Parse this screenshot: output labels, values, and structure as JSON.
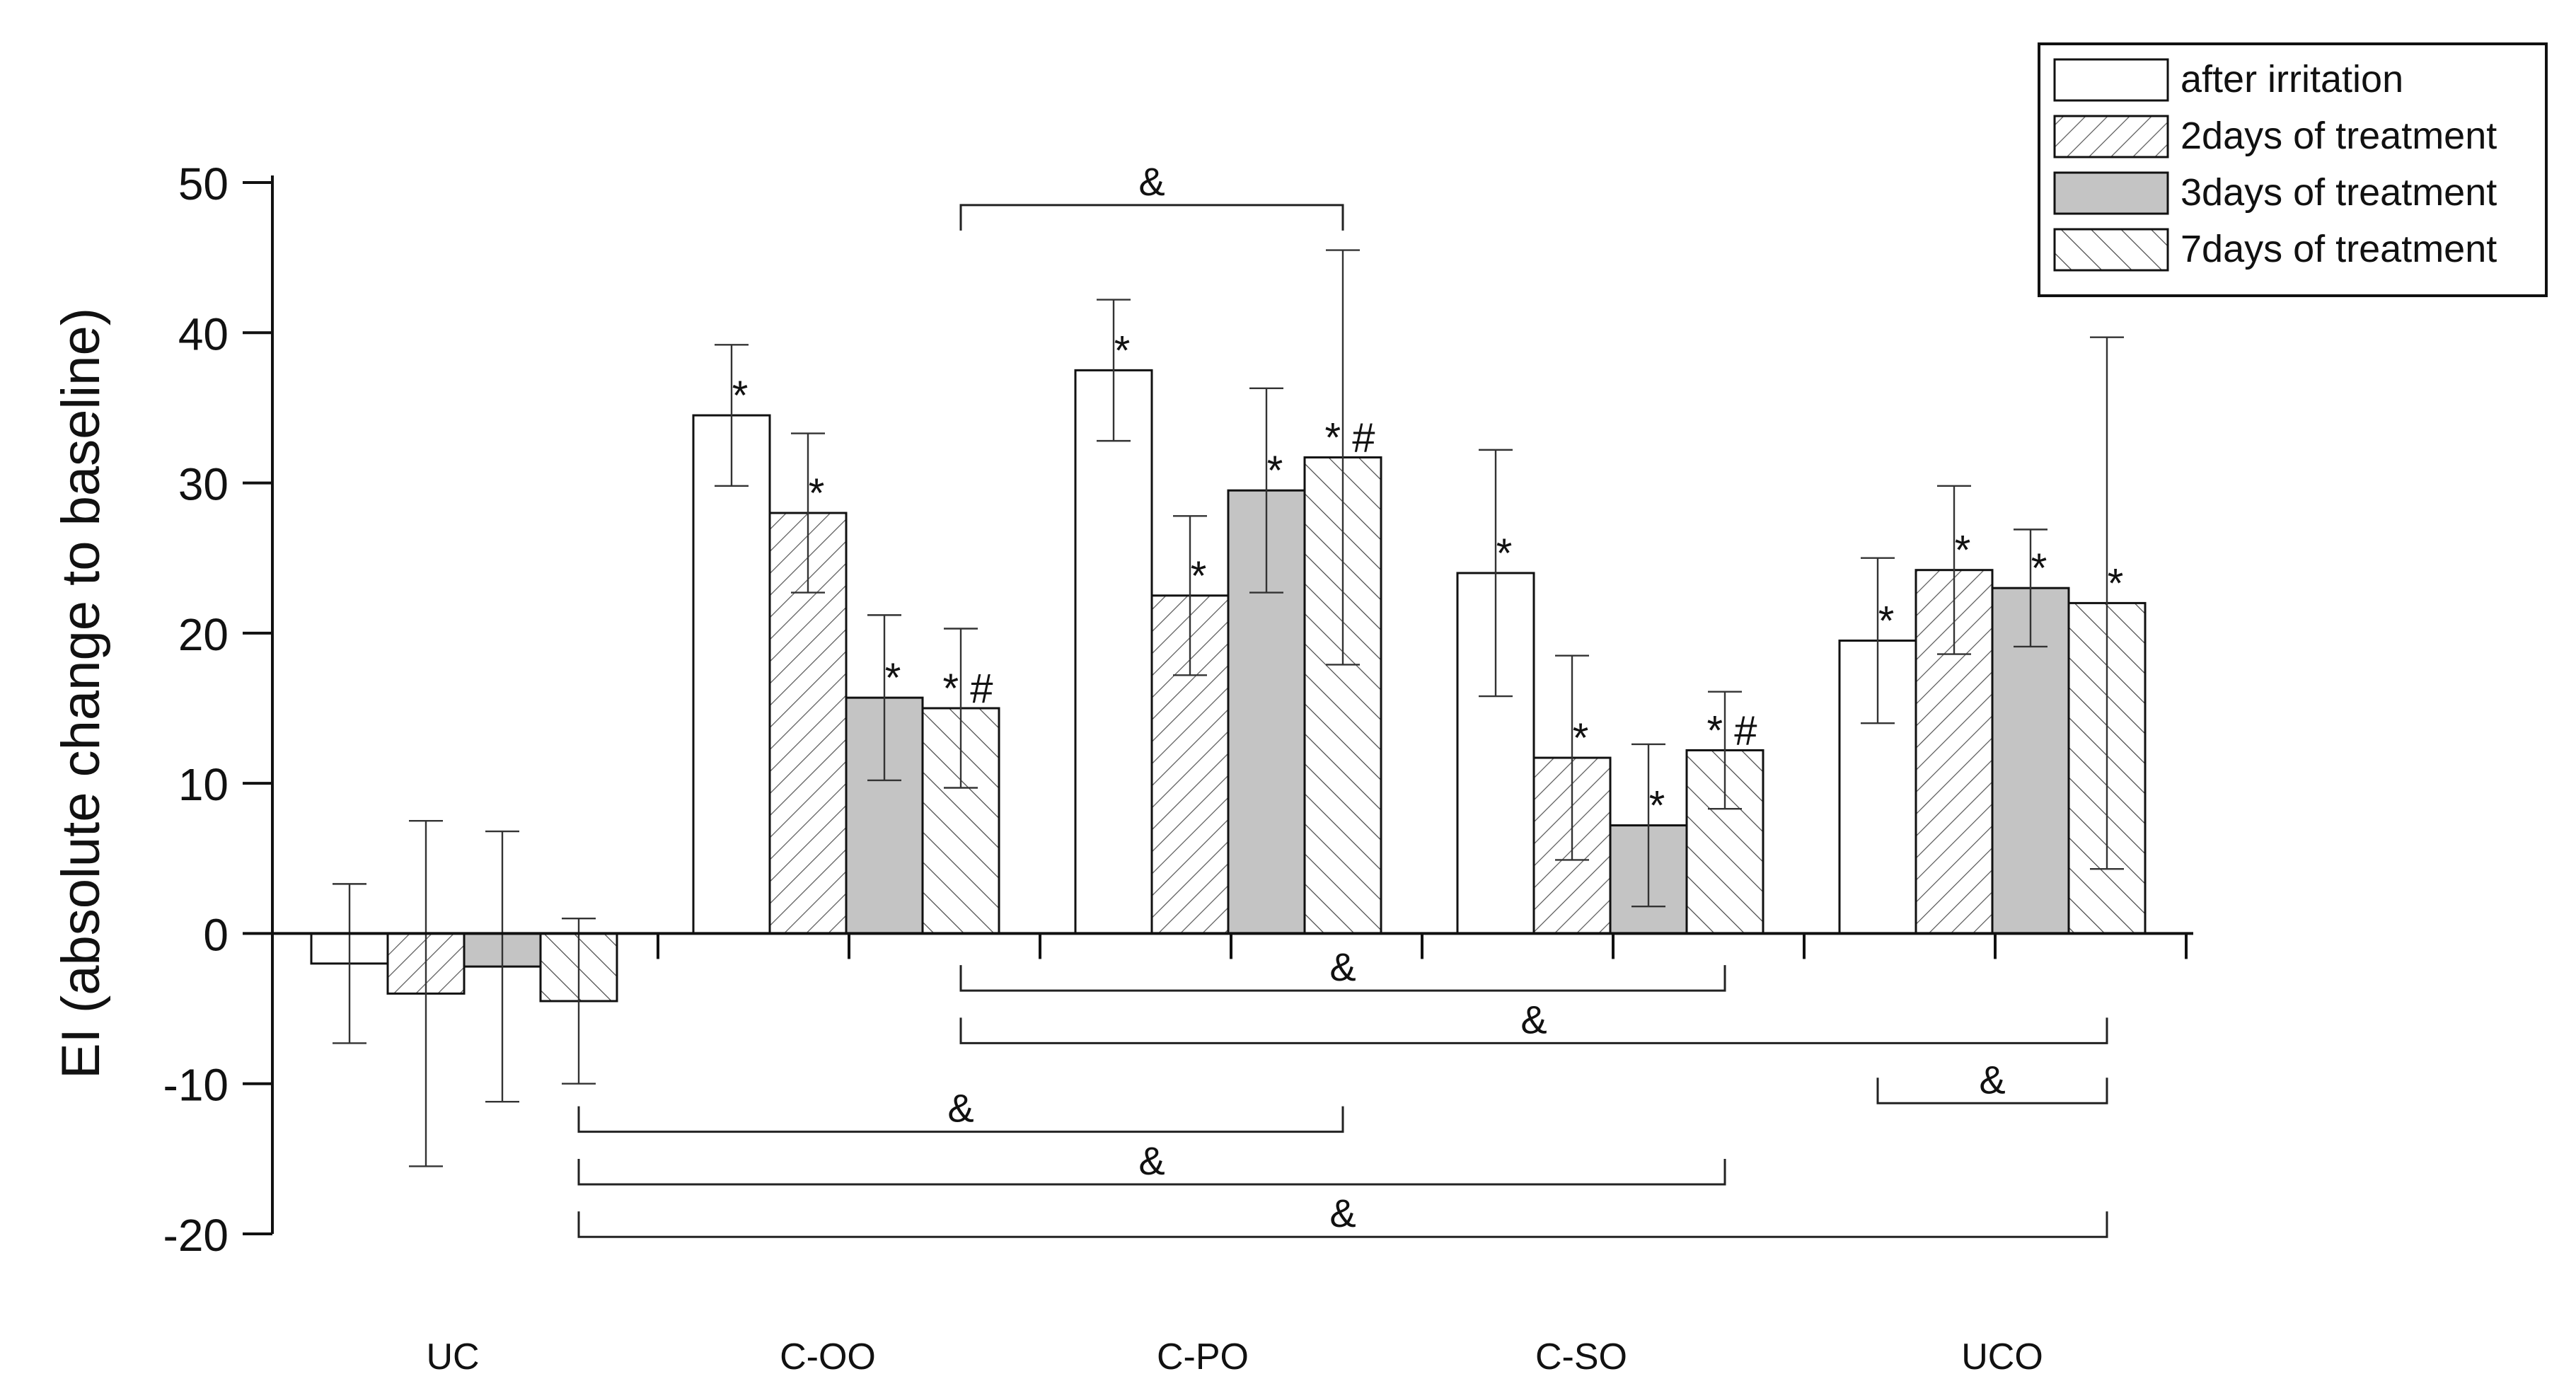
{
  "chart_data": {
    "type": "bar",
    "title": "",
    "xlabel": "",
    "ylabel": "EI (absolute change to baseline)",
    "ylim": [
      -20,
      50
    ],
    "yticks": [
      50,
      40,
      30,
      20,
      10,
      0,
      -10,
      -20
    ],
    "categories": [
      "UC",
      "C-OO",
      "C-PO",
      "C-SO",
      "UCO"
    ],
    "legend_position": "top-right",
    "series": [
      {
        "name": "after irritation",
        "fill": "white",
        "values": [
          -2,
          34.5,
          37.5,
          24,
          19.5
        ],
        "errors": [
          5.3,
          4.7,
          4.7,
          8.2,
          5.5
        ],
        "marks": [
          "",
          "*",
          "*",
          "*",
          "*"
        ]
      },
      {
        "name": "2days of treatment",
        "fill": "hatch-right",
        "values": [
          -4,
          28,
          22.5,
          11.7,
          24.2
        ],
        "errors": [
          11.5,
          5.3,
          5.3,
          6.8,
          5.6
        ],
        "marks": [
          "",
          "*",
          "*",
          "*",
          "*"
        ]
      },
      {
        "name": "3days of treatment",
        "fill": "grey",
        "values": [
          -2.2,
          15.7,
          29.5,
          7.2,
          23
        ],
        "errors": [
          9,
          5.5,
          6.8,
          5.4,
          3.9
        ],
        "marks": [
          "",
          "*",
          "*",
          "*",
          "*"
        ]
      },
      {
        "name": "7days of treatment",
        "fill": "hatch-left",
        "values": [
          -4.5,
          15,
          31.7,
          12.2,
          22
        ],
        "errors": [
          5.5,
          5.3,
          13.8,
          3.9,
          17.7
        ],
        "marks": [
          "",
          "*#",
          "*#",
          "*#",
          "*"
        ]
      }
    ],
    "annotations": [
      {
        "label": "&",
        "from": [
          1,
          3
        ],
        "to": [
          2,
          3
        ],
        "y": 48.5,
        "side": "above"
      },
      {
        "label": "&",
        "from": [
          1,
          3
        ],
        "to": [
          3,
          3
        ],
        "y": -3.8,
        "side": "below"
      },
      {
        "label": "&",
        "from": [
          1,
          3
        ],
        "to": [
          4,
          3
        ],
        "y": -7.3,
        "side": "below"
      },
      {
        "label": "&",
        "from": [
          4,
          0
        ],
        "to": [
          4,
          3
        ],
        "y": -11.3,
        "side": "below"
      },
      {
        "label": "&",
        "from": [
          0,
          3
        ],
        "to": [
          2,
          3
        ],
        "y": -13.2,
        "side": "below"
      },
      {
        "label": "&",
        "from": [
          0,
          3
        ],
        "to": [
          3,
          3
        ],
        "y": -16.7,
        "side": "below"
      },
      {
        "label": "&",
        "from": [
          0,
          3
        ],
        "to": [
          4,
          3
        ],
        "y": -20.2,
        "side": "below"
      }
    ]
  }
}
